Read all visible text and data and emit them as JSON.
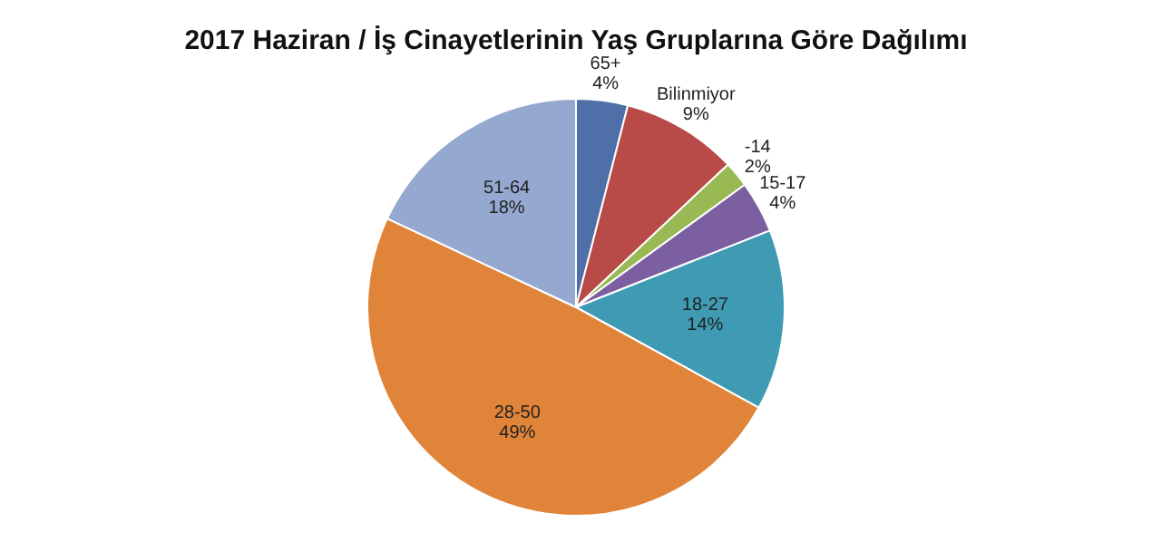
{
  "chart_data": {
    "type": "pie",
    "title": "2017 Haziran / İş Cinayetlerinin Yaş Gruplarına Göre Dağılımı",
    "categories": [
      "65+",
      "Bilinmiyor",
      "-14",
      "15-17",
      "18-27",
      "28-50",
      "51-64"
    ],
    "values": [
      4,
      9,
      2,
      4,
      14,
      49,
      18
    ],
    "value_labels": [
      "4%",
      "9%",
      "2%",
      "4%",
      "14%",
      "49%",
      "18%"
    ],
    "colors": [
      "#4f6fa8",
      "#b84a47",
      "#98b954",
      "#7b5fa0",
      "#3f9bb4",
      "#e0843a",
      "#94a8d0"
    ],
    "legend": false
  }
}
